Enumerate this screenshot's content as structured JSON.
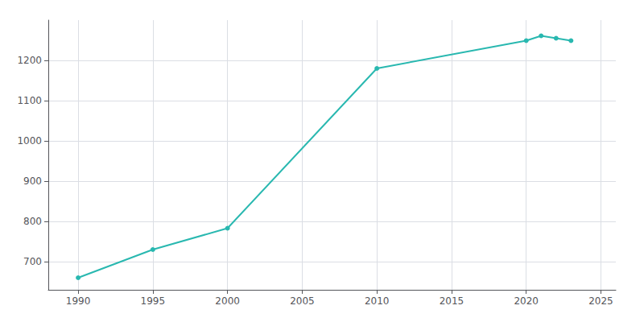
{
  "chart_data": {
    "type": "line",
    "x": [
      1990,
      1995,
      2000,
      2010,
      2020,
      2021,
      2022,
      2023
    ],
    "values": [
      660,
      730,
      783,
      1180,
      1249,
      1261,
      1255,
      1249
    ],
    "color": "#29b8b0",
    "marker": "circle",
    "xlim": [
      1988,
      2026
    ],
    "ylim": [
      630,
      1300
    ],
    "xticks": [
      1990,
      1995,
      2000,
      2005,
      2010,
      2015,
      2020,
      2025
    ],
    "yticks": [
      700,
      800,
      900,
      1000,
      1100,
      1200
    ],
    "grid": true
  }
}
